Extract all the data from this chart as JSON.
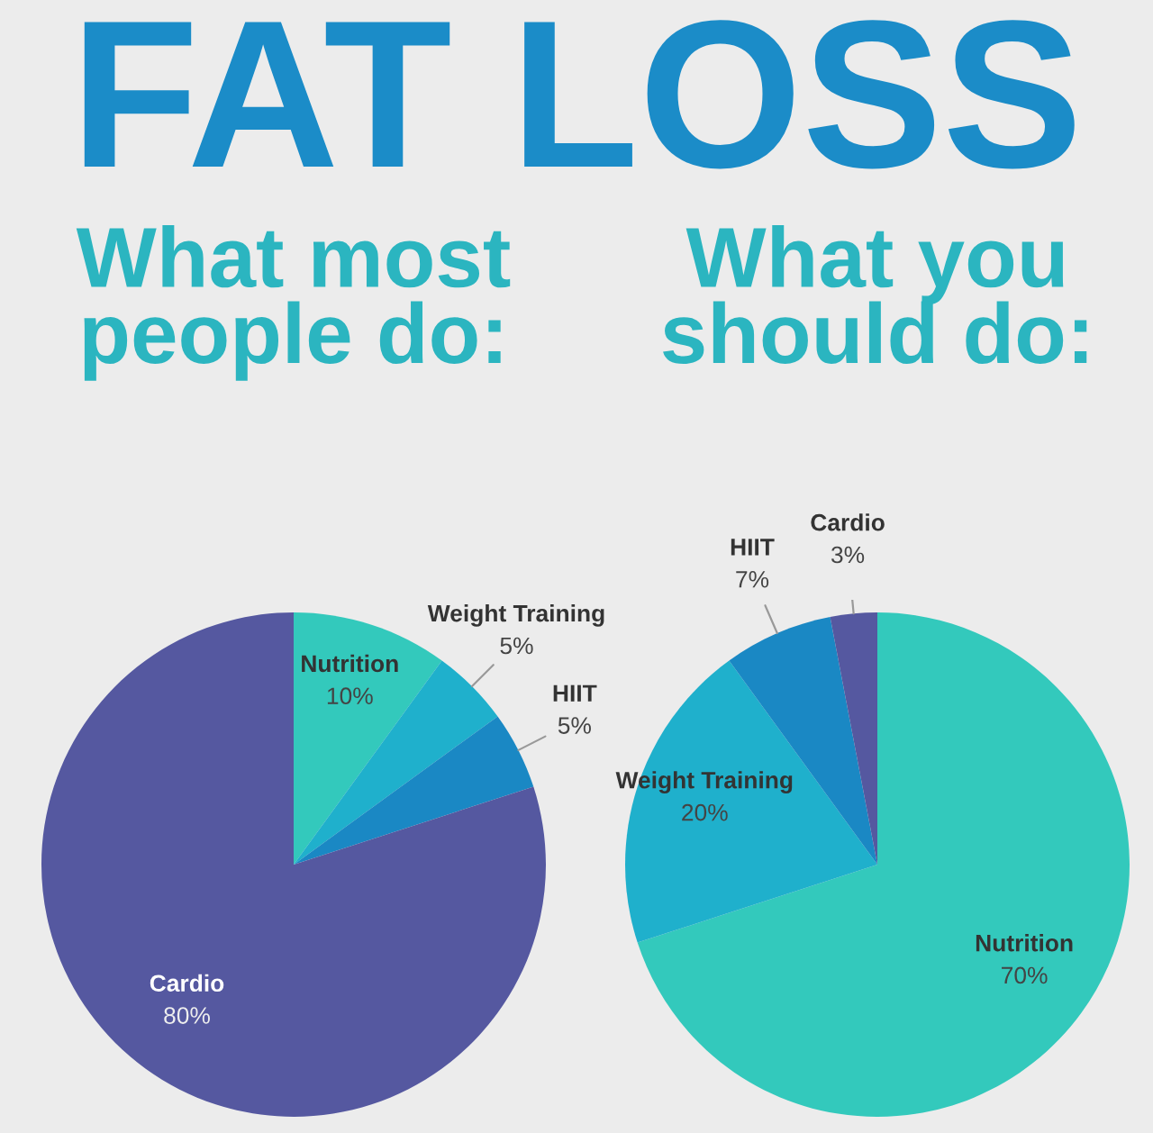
{
  "chart_data": [
    {
      "type": "pie",
      "title": "FAT LOSS",
      "subtitle": "What most\npeople do:",
      "categories": [
        "Nutrition",
        "Weight Training",
        "HIIT",
        "Cardio"
      ],
      "values": [
        10,
        5,
        5,
        80
      ],
      "value_labels": [
        "10%",
        "5%",
        "5%",
        "80%"
      ],
      "colors": [
        "#33c9bc",
        "#1fb0cc",
        "#1a88c4",
        "#5558a0"
      ],
      "legend": false
    },
    {
      "type": "pie",
      "subtitle": "What you\nshould do:",
      "categories": [
        "Nutrition",
        "Weight Training",
        "HIIT",
        "Cardio"
      ],
      "values": [
        70,
        20,
        7,
        3
      ],
      "value_labels": [
        "70%",
        "20%",
        "7%",
        "3%"
      ],
      "colors": [
        "#33c9bc",
        "#1fb0cc",
        "#1a88c4",
        "#5558a0"
      ],
      "legend": false
    }
  ]
}
